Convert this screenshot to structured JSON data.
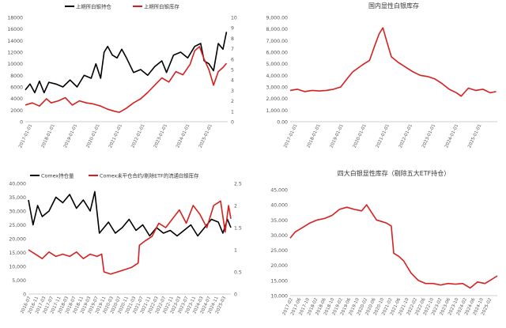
{
  "chart_data": [
    {
      "type": "line",
      "legend": [
        "上期所白银持仓",
        "上期所白银库存"
      ],
      "legend_placement": "top",
      "x_ticks": [
        "2017-01-01",
        "2018-01-01",
        "2019-01-01",
        "2020-01-01",
        "2021-01-01",
        "2022-01-01",
        "2023-01-01",
        "2024-01-01",
        "2025-01-01"
      ],
      "y_left": {
        "ticks": [
          "0",
          "2000",
          "4000",
          "6000",
          "8000",
          "10000",
          "12000",
          "14000",
          "16000",
          "18000"
        ],
        "range": [
          0,
          18000
        ]
      },
      "y_right": {
        "ticks": [
          "0",
          "1",
          "2",
          "3",
          "4",
          "5",
          "6",
          "7",
          "8",
          "9",
          "10"
        ],
        "range": [
          0,
          10
        ]
      },
      "x_range": [
        2017.0,
        2025.6
      ],
      "series": [
        {
          "name": "上期所白银持仓",
          "axis": "left",
          "color": "#000000",
          "x": [
            2017.0,
            2017.2,
            2017.4,
            2017.6,
            2017.8,
            2018.0,
            2018.3,
            2018.6,
            2018.9,
            2019.2,
            2019.5,
            2019.8,
            2020.0,
            2020.2,
            2020.35,
            2020.5,
            2020.7,
            2020.9,
            2021.1,
            2021.3,
            2021.6,
            2021.9,
            2022.2,
            2022.5,
            2022.8,
            2023.0,
            2023.3,
            2023.6,
            2023.9,
            2024.2,
            2024.45,
            2024.6,
            2024.8,
            2025.0,
            2025.2,
            2025.4,
            2025.55
          ],
          "y": [
            5500,
            6500,
            5000,
            7000,
            5000,
            6800,
            6500,
            6000,
            7200,
            6000,
            8000,
            7500,
            10000,
            7500,
            12000,
            13000,
            11500,
            11000,
            12500,
            11000,
            8500,
            9000,
            8000,
            9500,
            10500,
            8500,
            11500,
            12000,
            11000,
            13000,
            13500,
            10500,
            10000,
            8800,
            13500,
            12500,
            15500
          ]
        },
        {
          "name": "上期所白银库存",
          "axis": "right",
          "color": "#d62020",
          "x": [
            2017.0,
            2017.3,
            2017.6,
            2017.9,
            2018.1,
            2018.4,
            2018.7,
            2019.0,
            2019.3,
            2019.6,
            2019.9,
            2020.2,
            2020.5,
            2020.8,
            2021.0,
            2021.3,
            2021.6,
            2021.9,
            2022.2,
            2022.5,
            2022.8,
            2023.1,
            2023.4,
            2023.7,
            2024.0,
            2024.2,
            2024.4,
            2024.6,
            2024.8,
            2025.0,
            2025.2,
            2025.4,
            2025.55
          ],
          "y": [
            1.6,
            1.8,
            1.5,
            2.2,
            1.8,
            2.0,
            2.3,
            1.6,
            2.0,
            1.8,
            1.7,
            1.5,
            1.2,
            1.0,
            0.9,
            1.3,
            1.8,
            2.2,
            2.8,
            3.5,
            4.2,
            3.8,
            4.8,
            4.5,
            5.5,
            6.8,
            7.2,
            6.0,
            5.0,
            3.5,
            4.8,
            5.2,
            5.6
          ]
        }
      ]
    },
    {
      "type": "line",
      "title": "国内显性白银库存",
      "x_ticks": [
        "2017-01-01",
        "2018-01-01",
        "2019-01-01",
        "2020-01-01",
        "2021-01-01",
        "2022-01-01",
        "2023-01-01",
        "2024-01-01",
        "2025-01-01"
      ],
      "y_ticks": [
        "0.00",
        "1,000.00",
        "2,000.00",
        "3,000.00",
        "4,000.00",
        "5,000.00",
        "6,000.00",
        "7,000.00",
        "8,000.00",
        "9,000.00"
      ],
      "ylim": [
        0,
        9000
      ],
      "x_range": [
        2017.0,
        2025.6
      ],
      "series": [
        {
          "name": "国内显性白银库存",
          "color": "#d62020",
          "x": [
            2017.0,
            2017.3,
            2017.6,
            2017.9,
            2018.2,
            2018.5,
            2018.8,
            2019.1,
            2019.4,
            2019.6,
            2019.8,
            2020.0,
            2020.3,
            2020.5,
            2020.7,
            2020.85,
            2021.0,
            2021.2,
            2021.5,
            2021.8,
            2022.1,
            2022.4,
            2022.7,
            2023.0,
            2023.3,
            2023.6,
            2023.9,
            2024.1,
            2024.4,
            2024.7,
            2025.0,
            2025.3,
            2025.55
          ],
          "y": [
            2700,
            2800,
            2600,
            2700,
            2650,
            2700,
            2800,
            3000,
            3800,
            4300,
            4600,
            4900,
            5300,
            6500,
            7600,
            8100,
            7000,
            5600,
            5100,
            4700,
            4300,
            4000,
            3900,
            3700,
            3300,
            2800,
            2500,
            2200,
            2900,
            2700,
            2800,
            2500,
            2600
          ]
        }
      ]
    },
    {
      "type": "line",
      "legend": [
        "Comex持仓量",
        "Comex未平仓合约/剔除ETF的流通白银库存"
      ],
      "legend_placement": "top",
      "x_ticks": [
        "2016-07",
        "2016-11",
        "2017-03",
        "2017-07",
        "2017-11",
        "2018-03",
        "2018-07",
        "2018-11",
        "2019-03",
        "2019-07",
        "2019-11",
        "2020-03",
        "2020-07",
        "2020-11",
        "2021-03",
        "2021-07",
        "2021-11",
        "2022-03",
        "2022-07",
        "2022-11",
        "2023-03",
        "2023-07",
        "2023-11",
        "2024-03",
        "2024-07",
        "2024-11",
        "2025-03"
      ],
      "y_left": {
        "ticks": [
          "0",
          "5,000",
          "10,000",
          "15,000",
          "20,000",
          "25,000",
          "30,000",
          "35,000",
          "40,000"
        ],
        "range": [
          0,
          40000
        ]
      },
      "y_right": {
        "ticks": [
          "0",
          "0.5",
          "1",
          "1.5",
          "2",
          "2.5"
        ],
        "range": [
          0,
          2.5
        ]
      },
      "x_range": [
        2016.5,
        2025.35
      ],
      "series": [
        {
          "name": "Comex持仓量",
          "axis": "left",
          "color": "#000000",
          "x": [
            2016.5,
            2016.7,
            2016.9,
            2017.1,
            2017.4,
            2017.7,
            2018.0,
            2018.3,
            2018.6,
            2018.9,
            2019.2,
            2019.4,
            2019.6,
            2019.8,
            2020.0,
            2020.3,
            2020.6,
            2020.9,
            2021.2,
            2021.5,
            2021.8,
            2022.1,
            2022.4,
            2022.7,
            2023.0,
            2023.3,
            2023.6,
            2023.9,
            2024.2,
            2024.5,
            2024.8,
            2025.0,
            2025.2,
            2025.35
          ],
          "y": [
            34000,
            25000,
            32000,
            28000,
            30000,
            35000,
            33000,
            36000,
            31000,
            34000,
            30000,
            37000,
            22000,
            24000,
            26000,
            22000,
            24000,
            27000,
            23000,
            25000,
            21000,
            24000,
            22000,
            23000,
            21000,
            23000,
            25000,
            21000,
            24000,
            27000,
            26000,
            22000,
            27000,
            24000
          ]
        },
        {
          "name": "Comex未平仓合约/剔除ETF的流通白银库存",
          "axis": "right",
          "color": "#d62020",
          "x": [
            2016.5,
            2016.8,
            2017.1,
            2017.4,
            2017.7,
            2018.0,
            2018.3,
            2018.6,
            2018.9,
            2019.2,
            2019.5,
            2019.7,
            2019.8,
            2020.1,
            2020.4,
            2020.7,
            2021.0,
            2021.3,
            2021.35,
            2021.6,
            2021.9,
            2022.2,
            2022.5,
            2022.8,
            2023.1,
            2023.4,
            2023.7,
            2024.0,
            2024.3,
            2024.6,
            2024.9,
            2025.1,
            2025.25,
            2025.35
          ],
          "y": [
            1.0,
            0.9,
            0.8,
            0.95,
            0.85,
            0.9,
            0.85,
            0.95,
            0.8,
            0.9,
            0.85,
            0.9,
            0.5,
            0.45,
            0.5,
            0.55,
            0.6,
            0.7,
            1.1,
            1.2,
            1.3,
            1.6,
            1.5,
            1.7,
            1.9,
            1.6,
            2.0,
            1.8,
            1.5,
            2.0,
            2.1,
            1.4,
            2.0,
            1.7
          ]
        }
      ]
    },
    {
      "type": "line",
      "title": "四大白银显性库存（剔除五大ETF持仓）",
      "x_ticks": [
        "2017-02",
        "2017-06",
        "2017-10",
        "2018-02",
        "2018-06",
        "2018-10",
        "2019-02",
        "2019-06",
        "2019-10",
        "2020-02",
        "2020-06",
        "2020-10",
        "2021-02",
        "2021-06",
        "2021-10",
        "2022-02",
        "2022-06",
        "2022-10",
        "2023-02",
        "2023-06",
        "2023-10",
        "2024-02",
        "2024-06",
        "2024-10",
        "2025-02"
      ],
      "y_ticks": [
        "10,000",
        "15,000",
        "20,000",
        "25,000",
        "30,000",
        "35,000",
        "40,000",
        "45,000"
      ],
      "ylim": [
        10000,
        45000
      ],
      "x_range": [
        2017.0,
        2025.4
      ],
      "series": [
        {
          "name": "四大白银显性库存",
          "color": "#d62020",
          "x": [
            2017.0,
            2017.2,
            2017.5,
            2017.8,
            2018.1,
            2018.4,
            2018.7,
            2019.0,
            2019.3,
            2019.6,
            2019.9,
            2020.1,
            2020.3,
            2020.5,
            2020.7,
            2020.9,
            2021.1,
            2021.2,
            2021.4,
            2021.6,
            2021.9,
            2022.2,
            2022.5,
            2022.8,
            2023.1,
            2023.4,
            2023.7,
            2024.0,
            2024.3,
            2024.6,
            2024.9,
            2025.1,
            2025.3,
            2025.4
          ],
          "y": [
            29000,
            31000,
            32500,
            34000,
            35000,
            35500,
            36500,
            38500,
            39200,
            38500,
            38000,
            40000,
            37500,
            35000,
            34500,
            34000,
            33000,
            24000,
            23000,
            21500,
            17500,
            15000,
            14000,
            14000,
            13500,
            14000,
            13800,
            14000,
            12500,
            14500,
            14000,
            15000,
            16000,
            16500
          ]
        }
      ]
    }
  ]
}
